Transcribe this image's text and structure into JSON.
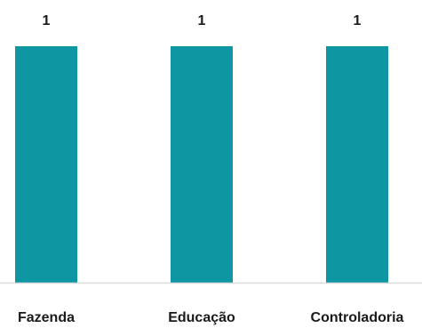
{
  "chart_data": {
    "type": "bar",
    "categories": [
      "Fazenda",
      "Educação",
      "Controladoria"
    ],
    "values": [
      1,
      1,
      1
    ],
    "data_labels": [
      "1",
      "1",
      "1"
    ],
    "title": "",
    "xlabel": "",
    "ylabel": "",
    "ylim": [
      0,
      1
    ],
    "grid": false,
    "legend": "none",
    "colors": {
      "bar": "#0E97A3",
      "axis": "#D9D9D9",
      "text": "#1A1A1A"
    }
  }
}
